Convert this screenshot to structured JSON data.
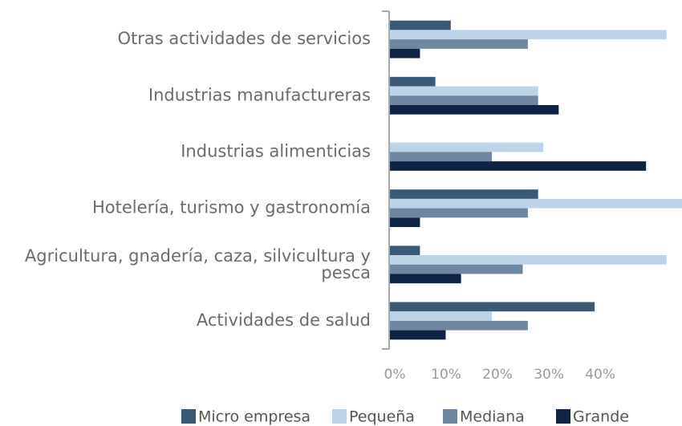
{
  "chart_data": {
    "type": "bar",
    "orientation": "horizontal",
    "categories": [
      "Otras actividades de servicios",
      "Industrias manufactureras",
      "Industrias alimenticias",
      "Hotelería, turismo y gastronomía",
      "Agricultura, gnadería, caza, silvicultura y pesca",
      "Actividades de salud"
    ],
    "series": [
      {
        "name": "Micro empresa",
        "color": "#3b5a78",
        "values": [
          12,
          9,
          0,
          29,
          6,
          40
        ]
      },
      {
        "name": "Pequeña",
        "color": "#bdd3e8",
        "values": [
          54,
          29,
          30,
          57,
          54,
          20
        ]
      },
      {
        "name": "Mediana",
        "color": "#6f86a0",
        "values": [
          27,
          29,
          20,
          27,
          26,
          27
        ]
      },
      {
        "name": "Grande",
        "color": "#0f2444",
        "values": [
          6,
          33,
          50,
          6,
          14,
          11
        ]
      }
    ],
    "xlim": [
      0,
      57
    ],
    "xticks": [
      {
        "value": 0,
        "label": "0%"
      },
      {
        "value": 10,
        "label": "10%"
      },
      {
        "value": 20,
        "label": "20%"
      },
      {
        "value": 30,
        "label": "30%"
      },
      {
        "value": 40,
        "label": "40%"
      }
    ],
    "grid": false,
    "legend": "bottom"
  }
}
